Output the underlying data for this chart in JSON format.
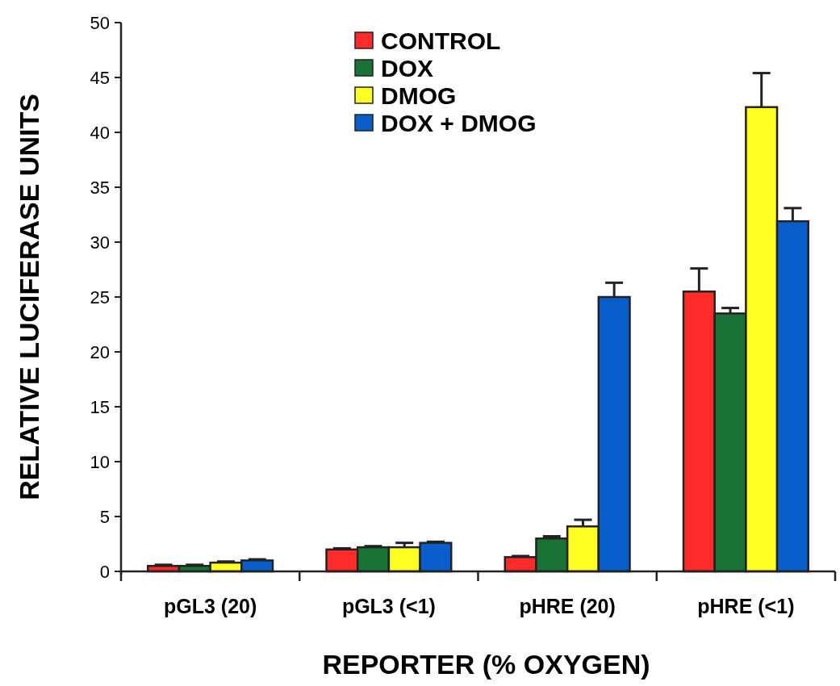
{
  "chart_data": {
    "type": "bar",
    "xlabel": "REPORTER (% OXYGEN)",
    "ylabel": "RELATIVE LUCIFERASE UNITS",
    "categories": [
      "pGL3 (20)",
      "pGL3 (<1)",
      "pHRE (20)",
      "pHRE (<1)"
    ],
    "series": [
      {
        "name": "CONTROL",
        "color": "#ff2a2a",
        "values": [
          0.5,
          2.0,
          1.3,
          25.5
        ],
        "errors": [
          [
            0.5,
            0.6
          ],
          [
            2.0,
            2.1
          ],
          [
            1.3,
            1.4
          ],
          [
            25.5,
            27.6
          ]
        ]
      },
      {
        "name": "DOX",
        "color": "#1a7336",
        "values": [
          0.5,
          2.2,
          3.0,
          23.5
        ],
        "errors": [
          [
            0.5,
            0.6
          ],
          [
            2.2,
            2.3
          ],
          [
            3.0,
            3.2
          ],
          [
            23.5,
            24.0
          ]
        ]
      },
      {
        "name": "DMOG",
        "color": "#ffff22",
        "values": [
          0.8,
          2.2,
          4.1,
          42.3
        ],
        "errors": [
          [
            0.8,
            0.9
          ],
          [
            2.2,
            2.6
          ],
          [
            4.1,
            4.7
          ],
          [
            42.3,
            45.4
          ]
        ]
      },
      {
        "name": "DOX + DMOG",
        "color": "#0a5ecc",
        "values": [
          1.0,
          2.6,
          25.0,
          31.9
        ],
        "errors": [
          [
            1.0,
            1.1
          ],
          [
            2.6,
            2.7
          ],
          [
            25.0,
            26.3
          ],
          [
            31.9,
            33.1
          ]
        ]
      }
    ],
    "ylim": [
      0,
      50
    ],
    "yticks": [
      0,
      5,
      10,
      15,
      20,
      25,
      30,
      35,
      40,
      45,
      50
    ],
    "legend": "top"
  }
}
